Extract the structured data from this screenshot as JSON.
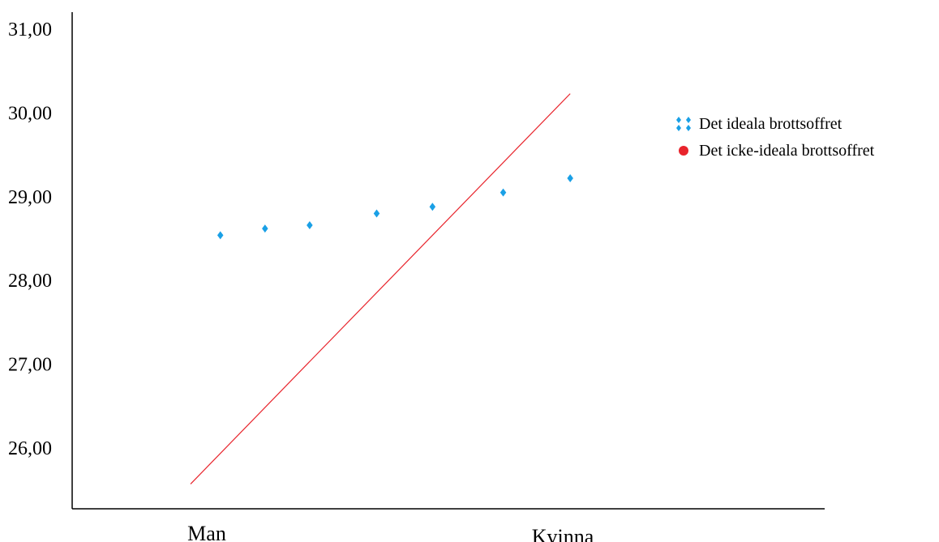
{
  "chart_data": {
    "type": "scatter",
    "title": "",
    "xlabel": "",
    "ylabel": "",
    "categories": [
      "Man",
      "Kvinna"
    ],
    "xlim": [
      0,
      1
    ],
    "ylim": [
      25.35,
      31.2
    ],
    "y_ticks": [
      26,
      27,
      28,
      29,
      30,
      31
    ],
    "y_tick_labels": [
      "26,00",
      "27,00",
      "28,00",
      "29,00",
      "30,00",
      "31,00"
    ],
    "grid": false,
    "legend_position": "right",
    "series": [
      {
        "name": "Det ideala brottsoffret",
        "kind": "points",
        "color": "#1aa0e6",
        "marker": "diamond",
        "points": [
          {
            "x": 0.08,
            "y": 28.54
          },
          {
            "x": 0.2,
            "y": 28.62
          },
          {
            "x": 0.32,
            "y": 28.66
          },
          {
            "x": 0.5,
            "y": 28.8
          },
          {
            "x": 0.65,
            "y": 28.88
          },
          {
            "x": 0.84,
            "y": 29.05
          },
          {
            "x": 1.02,
            "y": 29.22
          }
        ]
      },
      {
        "name": "Det icke-ideala brottsoffret",
        "kind": "line",
        "color": "#e8242c",
        "marker": "circle",
        "points": [
          {
            "x": 0,
            "y": 25.57
          },
          {
            "x": 1.02,
            "y": 30.23
          }
        ]
      }
    ]
  }
}
